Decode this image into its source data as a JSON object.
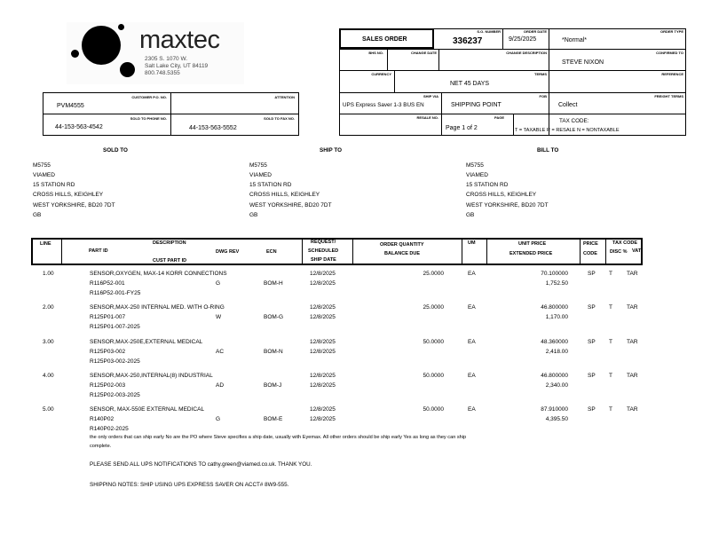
{
  "company": {
    "name": "maxtec",
    "address1": "2305 S. 1070 W.",
    "address2": "Salt Lake City, UT 84119",
    "phone": "800.748.5355"
  },
  "header": {
    "doc_title": "SALES ORDER",
    "so_number_label": "S.O. NUMBER",
    "so_number": "336237",
    "order_date_label": "ORDER DATE",
    "order_date": "9/25/2025",
    "order_type_label": "ORDER TYPE",
    "order_type": "*Normal*",
    "bhs_label": "BHS NO.",
    "bhs": "",
    "change_date_label": "CHANGE DATE",
    "change_date": "",
    "change_desc_label": "CHANGE DESCRIPTION",
    "change_desc": "",
    "confirmed_to_label": "CONFIRMED TO",
    "confirmed_to": "STEVE NIXON",
    "currency_label": "CURRENCY",
    "currency": "",
    "terms_label": "TERMS",
    "terms": "NET 45 DAYS",
    "reference_label": "REFERENCE",
    "reference": "",
    "ship_via_label": "SHIP VIA",
    "ship_via": "UPS Express Saver 1-3 BUS EN",
    "fob_label": "FOB",
    "fob": "SHIPPING POINT",
    "freight_label": "FREIGHT TERMS",
    "freight": "Collect",
    "resale_label": "RESALE NO.",
    "resale": "",
    "page_label": "PAGE",
    "page": "Page 1 of 2",
    "tax_code_title": "TAX CODE:",
    "tax_code_legend": "T = TAXABLE   R = RESALE   N = NONTAXABLE"
  },
  "customer": {
    "cust_po_label": "CUSTOMER P.O. NO.",
    "cust_po": "PVM4555",
    "attention_label": "ATTENTION",
    "attention": "",
    "phone_label": "SOLD TO PHONE NO.",
    "phone": "44-153-563-4542",
    "fax_label": "SOLD TO FAX NO.",
    "fax": "44-153-563-5552"
  },
  "addresses": [
    {
      "title": "SOLD TO",
      "lines": [
        "M5755",
        "VIAMED",
        "15 STATION RD",
        "CROSS HILLS, KEIGHLEY",
        "WEST YORKSHIRE,   BD20 7DT",
        "GB"
      ]
    },
    {
      "title": "SHIP TO",
      "lines": [
        "M5755",
        "VIAMED",
        "15 STATION RD",
        "CROSS HILLS, KEIGHLEY",
        "WEST YORKSHIRE,   BD20 7DT",
        "GB"
      ]
    },
    {
      "title": "BILL TO",
      "lines": [
        "M5755",
        "VIAMED",
        "15 STATION RD",
        "CROSS HILLS, KEIGHLEY",
        "WEST YORKSHIRE,   BD20 7DT",
        "GB"
      ]
    }
  ],
  "table": {
    "headers": {
      "line": "LINE",
      "description": "DESCRIPTION",
      "part_id": "PART ID",
      "cust_part_id": "CUST PART ID",
      "dwg_rev": "DWG REV",
      "ecn": "ECN",
      "request": "REQUEST/",
      "scheduled": "SCHEDULED",
      "ship_date": "SHIP DATE",
      "order_qty": "ORDER QUANTITY",
      "balance_due": "BALANCE DUE",
      "um": "UM",
      "unit_price": "UNIT PRICE",
      "extended_price": "EXTENDED PRICE",
      "price": "PRICE",
      "code": "CODE",
      "tax_code": "TAX CODE",
      "disc": "DISC %",
      "vat": "VAT"
    },
    "rows": [
      {
        "line": "1.00",
        "description": "SENSOR,OXYGEN, MAX-14 KORR CONNECTIONS",
        "part_id": "R116P52-001",
        "cust_part_id": "R116P52-001-FY25",
        "dwg_rev": "G",
        "ecn": "BOM-H",
        "request_date": "12/8/2025",
        "ship_date": "12/8/2025",
        "qty": "25.0000",
        "um": "EA",
        "unit_price": "70.100000",
        "extended": "1,752.50",
        "price_code": "SP",
        "tax": "T",
        "vat": "TAR"
      },
      {
        "line": "2.00",
        "description": "SENSOR,MAX-250 INTERNAL MED. WITH O-RING",
        "part_id": "R125P01-007",
        "cust_part_id": "R125P01-007-2025",
        "dwg_rev": "W",
        "ecn": "BOM-G",
        "request_date": "12/8/2025",
        "ship_date": "12/8/2025",
        "qty": "25.0000",
        "um": "EA",
        "unit_price": "46.800000",
        "extended": "1,170.00",
        "price_code": "SP",
        "tax": "T",
        "vat": "TAR"
      },
      {
        "line": "3.00",
        "description": "SENSOR,MAX-250E,EXTERNAL MEDICAL",
        "part_id": "R125P03-002",
        "cust_part_id": "R125P03-002-2025",
        "dwg_rev": "AC",
        "ecn": "BOM-N",
        "request_date": "12/8/2025",
        "ship_date": "12/8/2025",
        "qty": "50.0000",
        "um": "EA",
        "unit_price": "48.360000",
        "extended": "2,418.00",
        "price_code": "SP",
        "tax": "T",
        "vat": "TAR"
      },
      {
        "line": "4.00",
        "description": "SENSOR,MAX-250,INTERNAL(8) INDUSTRIAL",
        "part_id": "R125P02-003",
        "cust_part_id": "R125P02-003-2025",
        "dwg_rev": "AD",
        "ecn": "BOM-J",
        "request_date": "12/8/2025",
        "ship_date": "12/8/2025",
        "qty": "50.0000",
        "um": "EA",
        "unit_price": "46.800000",
        "extended": "2,340.00",
        "price_code": "SP",
        "tax": "T",
        "vat": "TAR"
      },
      {
        "line": "5.00",
        "description": "SENSOR, MAX-550E EXTERNAL MEDICAL",
        "part_id": "R140P02",
        "cust_part_id": "R140P02-2025",
        "dwg_rev": "G",
        "ecn": "BOM-E",
        "request_date": "12/8/2025",
        "ship_date": "12/8/2025",
        "qty": "50.0000",
        "um": "EA",
        "unit_price": "87.910000",
        "extended": "4,395.50",
        "price_code": "SP",
        "tax": "T",
        "vat": "TAR"
      }
    ]
  },
  "notes": {
    "note1": "the only orders that can ship early No are the PO where Steve specifies a ship date, usually with Eyemax.  All other orders should be ship early Yes as long as they can ship",
    "note1b": "complete.",
    "note2": "PLEASE SEND ALL UPS NOTIFICATIONS TO cathy.green@viamed.co.uk. THANK YOU.",
    "note3": "SHIPPING NOTES:  SHIP USING UPS EXPRESS SAVER ON ACCT# 8W9-555."
  }
}
